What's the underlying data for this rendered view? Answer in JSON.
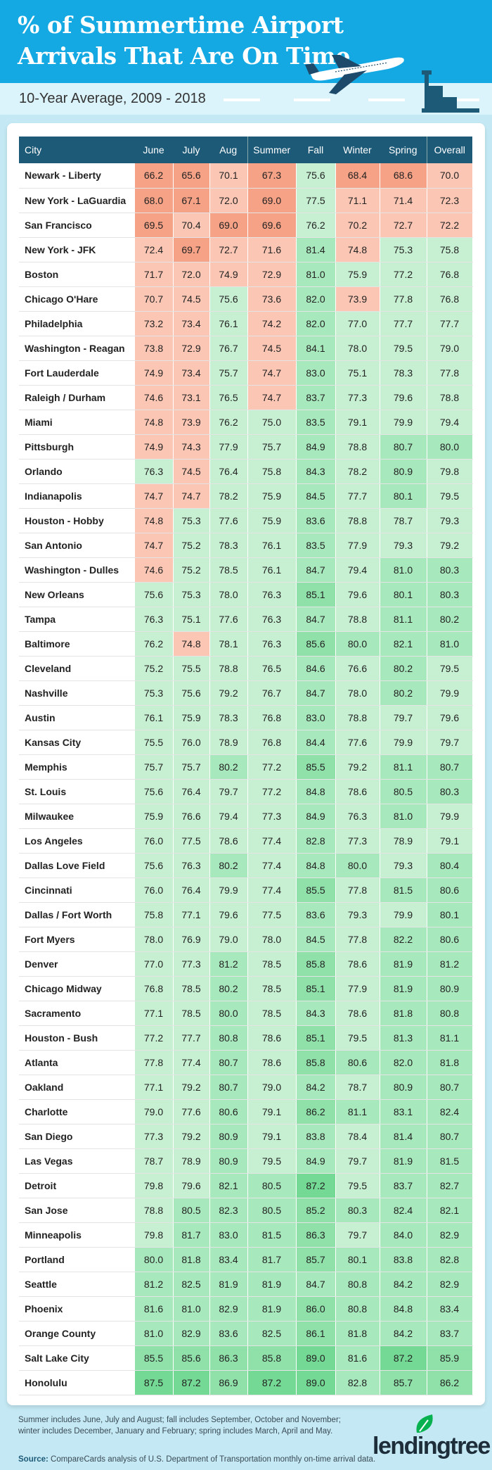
{
  "header": {
    "title_line1": "% of Summertime Airport",
    "title_line2": "Arrivals That Are On Time",
    "subtitle": "10-Year Average, 2009 - 2018"
  },
  "colors": {
    "header_blue": "#15a9e3",
    "table_header": "#1d5a78",
    "salmon_dark": "#f6a286",
    "salmon_light": "#fcc6b4",
    "green_light": "#c7f0d3",
    "green_mid": "#a8e8bd",
    "green_dark": "#8fe1a9",
    "green_darkest": "#74d994"
  },
  "chart_data": {
    "type": "table",
    "columns": [
      "City",
      "June",
      "July",
      "Aug",
      "Summer",
      "Fall",
      "Winter",
      "Spring",
      "Overall"
    ],
    "rows": [
      [
        "Newark - Liberty",
        "66.2",
        "65.6",
        "70.1",
        "67.3",
        "75.6",
        "68.4",
        "68.6",
        "70.0"
      ],
      [
        "New York - LaGuardia",
        "68.0",
        "67.1",
        "72.0",
        "69.0",
        "77.5",
        "71.1",
        "71.4",
        "72.3"
      ],
      [
        "San Francisco",
        "69.5",
        "70.4",
        "69.0",
        "69.6",
        "76.2",
        "70.2",
        "72.7",
        "72.2"
      ],
      [
        "New York - JFK",
        "72.4",
        "69.7",
        "72.7",
        "71.6",
        "81.4",
        "74.8",
        "75.3",
        "75.8"
      ],
      [
        "Boston",
        "71.7",
        "72.0",
        "74.9",
        "72.9",
        "81.0",
        "75.9",
        "77.2",
        "76.8"
      ],
      [
        "Chicago O'Hare",
        "70.7",
        "74.5",
        "75.6",
        "73.6",
        "82.0",
        "73.9",
        "77.8",
        "76.8"
      ],
      [
        "Philadelphia",
        "73.2",
        "73.4",
        "76.1",
        "74.2",
        "82.0",
        "77.0",
        "77.7",
        "77.7"
      ],
      [
        "Washington - Reagan",
        "73.8",
        "72.9",
        "76.7",
        "74.5",
        "84.1",
        "78.0",
        "79.5",
        "79.0"
      ],
      [
        "Fort Lauderdale",
        "74.9",
        "73.4",
        "75.7",
        "74.7",
        "83.0",
        "75.1",
        "78.3",
        "77.8"
      ],
      [
        "Raleigh / Durham",
        "74.6",
        "73.1",
        "76.5",
        "74.7",
        "83.7",
        "77.3",
        "79.6",
        "78.8"
      ],
      [
        "Miami",
        "74.8",
        "73.9",
        "76.2",
        "75.0",
        "83.5",
        "79.1",
        "79.9",
        "79.4"
      ],
      [
        "Pittsburgh",
        "74.9",
        "74.3",
        "77.9",
        "75.7",
        "84.9",
        "78.8",
        "80.7",
        "80.0"
      ],
      [
        "Orlando",
        "76.3",
        "74.5",
        "76.4",
        "75.8",
        "84.3",
        "78.2",
        "80.9",
        "79.8"
      ],
      [
        "Indianapolis",
        "74.7",
        "74.7",
        "78.2",
        "75.9",
        "84.5",
        "77.7",
        "80.1",
        "79.5"
      ],
      [
        "Houston - Hobby",
        "74.8",
        "75.3",
        "77.6",
        "75.9",
        "83.6",
        "78.8",
        "78.7",
        "79.3"
      ],
      [
        "San Antonio",
        "74.7",
        "75.2",
        "78.3",
        "76.1",
        "83.5",
        "77.9",
        "79.3",
        "79.2"
      ],
      [
        "Washington - Dulles",
        "74.6",
        "75.2",
        "78.5",
        "76.1",
        "84.7",
        "79.4",
        "81.0",
        "80.3"
      ],
      [
        "New Orleans",
        "75.6",
        "75.3",
        "78.0",
        "76.3",
        "85.1",
        "79.6",
        "80.1",
        "80.3"
      ],
      [
        "Tampa",
        "76.3",
        "75.1",
        "77.6",
        "76.3",
        "84.7",
        "78.8",
        "81.1",
        "80.2"
      ],
      [
        "Baltimore",
        "76.2",
        "74.8",
        "78.1",
        "76.3",
        "85.6",
        "80.0",
        "82.1",
        "81.0"
      ],
      [
        "Cleveland",
        "75.2",
        "75.5",
        "78.8",
        "76.5",
        "84.6",
        "76.6",
        "80.2",
        "79.5"
      ],
      [
        "Nashville",
        "75.3",
        "75.6",
        "79.2",
        "76.7",
        "84.7",
        "78.0",
        "80.2",
        "79.9"
      ],
      [
        "Austin",
        "76.1",
        "75.9",
        "78.3",
        "76.8",
        "83.0",
        "78.8",
        "79.7",
        "79.6"
      ],
      [
        "Kansas City",
        "75.5",
        "76.0",
        "78.9",
        "76.8",
        "84.4",
        "77.6",
        "79.9",
        "79.7"
      ],
      [
        "Memphis",
        "75.7",
        "75.7",
        "80.2",
        "77.2",
        "85.5",
        "79.2",
        "81.1",
        "80.7"
      ],
      [
        "St. Louis",
        "75.6",
        "76.4",
        "79.7",
        "77.2",
        "84.8",
        "78.6",
        "80.5",
        "80.3"
      ],
      [
        "Milwaukee",
        "75.9",
        "76.6",
        "79.4",
        "77.3",
        "84.9",
        "76.3",
        "81.0",
        "79.9"
      ],
      [
        "Los Angeles",
        "76.0",
        "77.5",
        "78.6",
        "77.4",
        "82.8",
        "77.3",
        "78.9",
        "79.1"
      ],
      [
        "Dallas Love Field",
        "75.6",
        "76.3",
        "80.2",
        "77.4",
        "84.8",
        "80.0",
        "79.3",
        "80.4"
      ],
      [
        "Cincinnati",
        "76.0",
        "76.4",
        "79.9",
        "77.4",
        "85.5",
        "77.8",
        "81.5",
        "80.6"
      ],
      [
        "Dallas / Fort Worth",
        "75.8",
        "77.1",
        "79.6",
        "77.5",
        "83.6",
        "79.3",
        "79.9",
        "80.1"
      ],
      [
        "Fort Myers",
        "78.0",
        "76.9",
        "79.0",
        "78.0",
        "84.5",
        "77.8",
        "82.2",
        "80.6"
      ],
      [
        "Denver",
        "77.0",
        "77.3",
        "81.2",
        "78.5",
        "85.8",
        "78.6",
        "81.9",
        "81.2"
      ],
      [
        "Chicago Midway",
        "76.8",
        "78.5",
        "80.2",
        "78.5",
        "85.1",
        "77.9",
        "81.9",
        "80.9"
      ],
      [
        "Sacramento",
        "77.1",
        "78.5",
        "80.0",
        "78.5",
        "84.3",
        "78.6",
        "81.8",
        "80.8"
      ],
      [
        "Houston - Bush",
        "77.2",
        "77.7",
        "80.8",
        "78.6",
        "85.1",
        "79.5",
        "81.3",
        "81.1"
      ],
      [
        "Atlanta",
        "77.8",
        "77.4",
        "80.7",
        "78.6",
        "85.8",
        "80.6",
        "82.0",
        "81.8"
      ],
      [
        "Oakland",
        "77.1",
        "79.2",
        "80.7",
        "79.0",
        "84.2",
        "78.7",
        "80.9",
        "80.7"
      ],
      [
        "Charlotte",
        "79.0",
        "77.6",
        "80.6",
        "79.1",
        "86.2",
        "81.1",
        "83.1",
        "82.4"
      ],
      [
        "San Diego",
        "77.3",
        "79.2",
        "80.9",
        "79.1",
        "83.8",
        "78.4",
        "81.4",
        "80.7"
      ],
      [
        "Las Vegas",
        "78.7",
        "78.9",
        "80.9",
        "79.5",
        "84.9",
        "79.7",
        "81.9",
        "81.5"
      ],
      [
        "Detroit",
        "79.8",
        "79.6",
        "82.1",
        "80.5",
        "87.2",
        "79.5",
        "83.7",
        "82.7"
      ],
      [
        "San Jose",
        "78.8",
        "80.5",
        "82.3",
        "80.5",
        "85.2",
        "80.3",
        "82.4",
        "82.1"
      ],
      [
        "Minneapolis",
        "79.8",
        "81.7",
        "83.0",
        "81.5",
        "86.3",
        "79.7",
        "84.0",
        "82.9"
      ],
      [
        "Portland",
        "80.0",
        "81.8",
        "83.4",
        "81.7",
        "85.7",
        "80.1",
        "83.8",
        "82.8"
      ],
      [
        "Seattle",
        "81.2",
        "82.5",
        "81.9",
        "81.9",
        "84.7",
        "80.8",
        "84.2",
        "82.9"
      ],
      [
        "Phoenix",
        "81.6",
        "81.0",
        "82.9",
        "81.9",
        "86.0",
        "80.8",
        "84.8",
        "83.4"
      ],
      [
        "Orange County",
        "81.0",
        "82.9",
        "83.6",
        "82.5",
        "86.1",
        "81.8",
        "84.2",
        "83.7"
      ],
      [
        "Salt Lake City",
        "85.5",
        "85.6",
        "86.3",
        "85.8",
        "89.0",
        "81.6",
        "87.2",
        "85.9"
      ],
      [
        "Honolulu",
        "87.5",
        "87.2",
        "86.9",
        "87.2",
        "89.0",
        "82.8",
        "85.7",
        "86.2"
      ]
    ]
  },
  "footer": {
    "note": "Summer includes June, July and August; fall includes September, October and November; winter includes December, January and February; spring includes March, April and May.",
    "source_label": "Source:",
    "source_text": " CompareCards analysis of U.S. Department of Transportation monthly on-time arrival data.",
    "logo": "lendingtree"
  }
}
